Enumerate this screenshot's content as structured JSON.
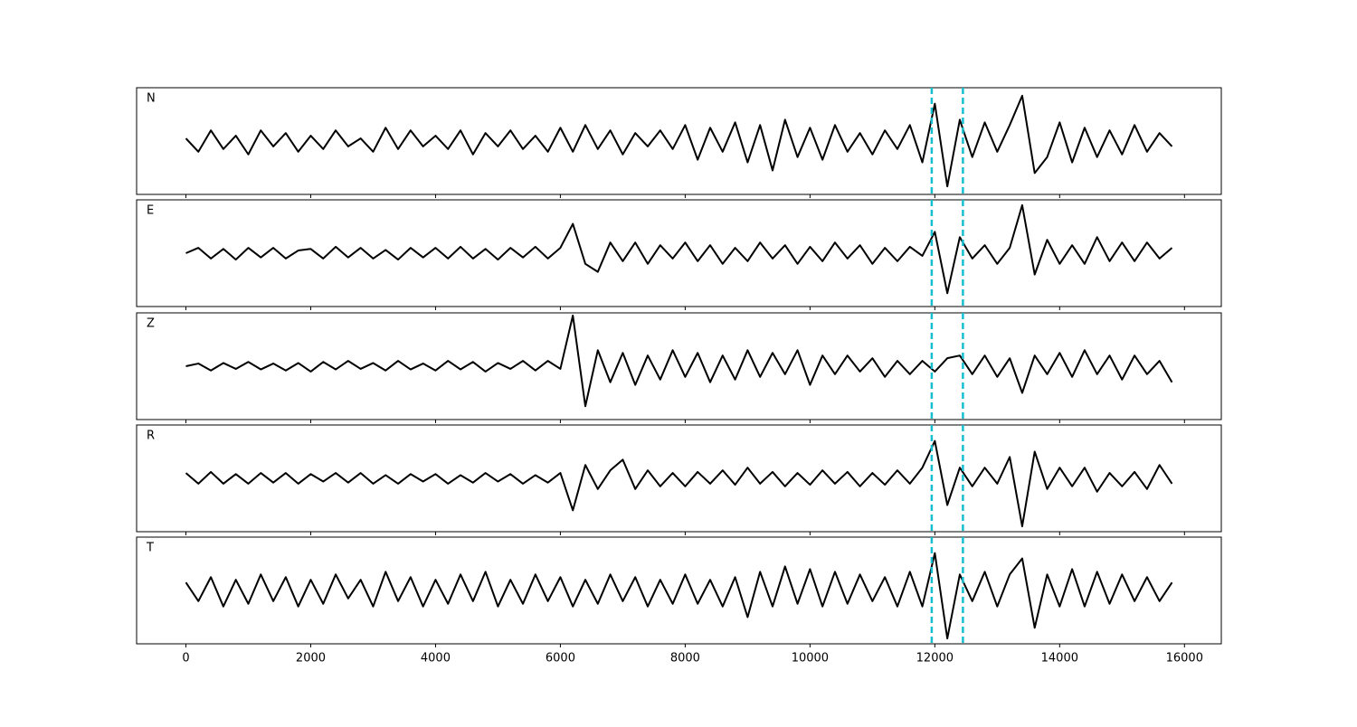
{
  "chart_data": {
    "type": "line",
    "x": [
      0,
      200,
      400,
      600,
      800,
      1000,
      1200,
      1400,
      1600,
      1800,
      2000,
      2200,
      2400,
      2600,
      2800,
      3000,
      3200,
      3400,
      3600,
      3800,
      4000,
      4200,
      4400,
      4600,
      4800,
      5000,
      5200,
      5400,
      5600,
      5800,
      6000,
      6200,
      6400,
      6600,
      6800,
      7000,
      7200,
      7400,
      7600,
      7800,
      8000,
      8200,
      8400,
      8600,
      8800,
      9000,
      9200,
      9400,
      9600,
      9800,
      10000,
      10200,
      10400,
      10600,
      10800,
      11000,
      11200,
      11400,
      11600,
      11800,
      12000,
      12200,
      12400,
      12600,
      12800,
      13000,
      13200,
      13400,
      13600,
      13800,
      14000,
      14200,
      14400,
      14600,
      14800,
      15000,
      15200,
      15400,
      15600,
      15800
    ],
    "series": [
      {
        "name": "N",
        "color": "#000000",
        "values": [
          0.05,
          -0.2,
          0.2,
          -0.15,
          0.1,
          -0.25,
          0.2,
          -0.1,
          0.15,
          -0.2,
          0.1,
          -0.15,
          0.2,
          -0.1,
          0.05,
          -0.2,
          0.25,
          -0.15,
          0.2,
          -0.1,
          0.1,
          -0.15,
          0.2,
          -0.25,
          0.15,
          -0.1,
          0.2,
          -0.15,
          0.1,
          -0.2,
          0.25,
          -0.2,
          0.3,
          -0.15,
          0.2,
          -0.25,
          0.15,
          -0.1,
          0.2,
          -0.15,
          0.3,
          -0.35,
          0.25,
          -0.2,
          0.35,
          -0.4,
          0.3,
          -0.55,
          0.4,
          -0.3,
          0.25,
          -0.35,
          0.3,
          -0.2,
          0.15,
          -0.25,
          0.2,
          -0.15,
          0.3,
          -0.4,
          0.7,
          -0.85,
          0.4,
          -0.3,
          0.35,
          -0.2,
          0.3,
          0.85,
          -0.6,
          -0.3,
          0.35,
          -0.4,
          0.25,
          -0.3,
          0.2,
          -0.25,
          0.3,
          -0.2,
          0.15,
          -0.1
        ]
      },
      {
        "name": "E",
        "color": "#000000",
        "values": [
          0.0,
          0.1,
          -0.1,
          0.08,
          -0.12,
          0.1,
          -0.08,
          0.1,
          -0.1,
          0.05,
          0.08,
          -0.1,
          0.12,
          -0.08,
          0.1,
          -0.1,
          0.06,
          -0.12,
          0.1,
          -0.08,
          0.1,
          -0.1,
          0.12,
          -0.1,
          0.08,
          -0.12,
          0.1,
          -0.08,
          0.12,
          -0.1,
          0.1,
          0.55,
          -0.2,
          -0.35,
          0.2,
          -0.15,
          0.2,
          -0.2,
          0.15,
          -0.1,
          0.2,
          -0.15,
          0.15,
          -0.2,
          0.1,
          -0.15,
          0.2,
          -0.1,
          0.15,
          -0.2,
          0.12,
          -0.15,
          0.2,
          -0.1,
          0.15,
          -0.2,
          0.1,
          -0.15,
          0.12,
          -0.05,
          0.4,
          -0.75,
          0.3,
          -0.1,
          0.15,
          -0.2,
          0.1,
          0.9,
          -0.4,
          0.25,
          -0.2,
          0.15,
          -0.2,
          0.3,
          -0.15,
          0.2,
          -0.15,
          0.2,
          -0.1,
          0.1
        ]
      },
      {
        "name": "Z",
        "color": "#000000",
        "values": [
          0.0,
          0.05,
          -0.08,
          0.06,
          -0.05,
          0.08,
          -0.06,
          0.05,
          -0.08,
          0.06,
          -0.1,
          0.08,
          -0.06,
          0.1,
          -0.05,
          0.06,
          -0.08,
          0.1,
          -0.06,
          0.05,
          -0.08,
          0.1,
          -0.06,
          0.08,
          -0.1,
          0.06,
          -0.05,
          0.1,
          -0.08,
          0.1,
          -0.05,
          0.95,
          -0.75,
          0.3,
          -0.3,
          0.25,
          -0.35,
          0.2,
          -0.25,
          0.3,
          -0.2,
          0.25,
          -0.3,
          0.2,
          -0.25,
          0.3,
          -0.2,
          0.25,
          -0.15,
          0.3,
          -0.35,
          0.2,
          -0.15,
          0.2,
          -0.1,
          0.15,
          -0.2,
          0.1,
          -0.15,
          0.1,
          -0.1,
          0.15,
          0.2,
          -0.15,
          0.2,
          -0.2,
          0.15,
          -0.5,
          0.2,
          -0.15,
          0.25,
          -0.2,
          0.3,
          -0.15,
          0.2,
          -0.25,
          0.2,
          -0.15,
          0.1,
          -0.3
        ]
      },
      {
        "name": "R",
        "color": "#000000",
        "values": [
          0.1,
          -0.1,
          0.12,
          -0.1,
          0.08,
          -0.1,
          0.1,
          -0.08,
          0.1,
          -0.1,
          0.08,
          -0.06,
          0.1,
          -0.08,
          0.1,
          -0.1,
          0.06,
          -0.1,
          0.08,
          -0.06,
          0.08,
          -0.1,
          0.06,
          -0.08,
          0.1,
          -0.06,
          0.08,
          -0.1,
          0.06,
          -0.08,
          0.1,
          -0.6,
          0.25,
          -0.2,
          0.15,
          0.35,
          -0.2,
          0.15,
          -0.15,
          0.1,
          -0.15,
          0.12,
          -0.1,
          0.15,
          -0.12,
          0.2,
          -0.1,
          0.12,
          -0.15,
          0.1,
          -0.12,
          0.15,
          -0.1,
          0.12,
          -0.15,
          0.1,
          -0.12,
          0.15,
          -0.1,
          0.2,
          0.7,
          -0.5,
          0.2,
          -0.15,
          0.2,
          -0.1,
          0.4,
          -0.9,
          0.5,
          -0.2,
          0.2,
          -0.15,
          0.2,
          -0.25,
          0.1,
          -0.15,
          0.12,
          -0.2,
          0.25,
          -0.1
        ]
      },
      {
        "name": "T",
        "color": "#000000",
        "values": [
          0.15,
          -0.2,
          0.25,
          -0.3,
          0.2,
          -0.25,
          0.3,
          -0.2,
          0.25,
          -0.3,
          0.2,
          -0.25,
          0.3,
          -0.15,
          0.2,
          -0.3,
          0.35,
          -0.2,
          0.25,
          -0.3,
          0.2,
          -0.25,
          0.3,
          -0.2,
          0.35,
          -0.3,
          0.2,
          -0.25,
          0.3,
          -0.2,
          0.25,
          -0.3,
          0.2,
          -0.25,
          0.3,
          -0.2,
          0.25,
          -0.3,
          0.2,
          -0.25,
          0.3,
          -0.25,
          0.2,
          -0.3,
          0.25,
          -0.5,
          0.35,
          -0.3,
          0.45,
          -0.25,
          0.4,
          -0.3,
          0.35,
          -0.25,
          0.3,
          -0.2,
          0.25,
          -0.3,
          0.35,
          -0.3,
          0.7,
          -0.9,
          0.3,
          -0.2,
          0.35,
          -0.3,
          0.3,
          0.6,
          -0.7,
          0.3,
          -0.3,
          0.4,
          -0.3,
          0.35,
          -0.25,
          0.3,
          -0.2,
          0.25,
          -0.2,
          0.15
        ]
      }
    ],
    "xlim": [
      -790,
      16590
    ],
    "xticks": [
      0,
      2000,
      4000,
      6000,
      8000,
      10000,
      12000,
      14000,
      16000
    ],
    "ylim": [
      -1,
      1
    ],
    "vlines": [
      11950,
      12450
    ],
    "vline_color": "#17becf",
    "grid": false
  }
}
